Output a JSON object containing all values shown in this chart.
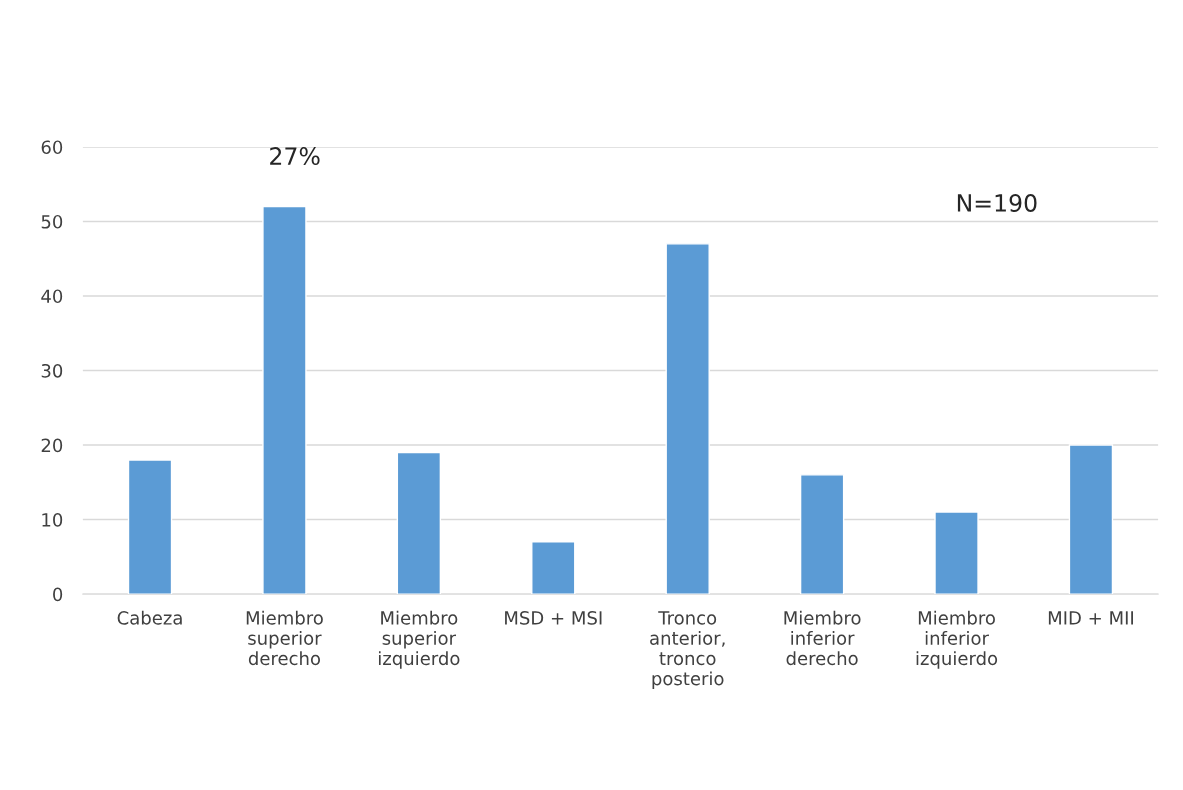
{
  "chart_data": {
    "type": "bar",
    "categories": [
      "Cabeza",
      "Miembro superior derecho",
      "Miembro superior izquierdo",
      "MSD + MSI",
      "Tronco anterior, tronco posterio",
      "Miembro inferior derecho",
      "Miembro inferior izquierdo",
      "MID + MII"
    ],
    "values": [
      18,
      52,
      19,
      7,
      47,
      16,
      11,
      20
    ],
    "color": "#5b9bd5",
    "ylim": [
      0,
      60
    ],
    "yticks": [
      0,
      10,
      20,
      30,
      40,
      50,
      60
    ],
    "grid": "y",
    "annotations": [
      "27%",
      "N=190"
    ]
  }
}
